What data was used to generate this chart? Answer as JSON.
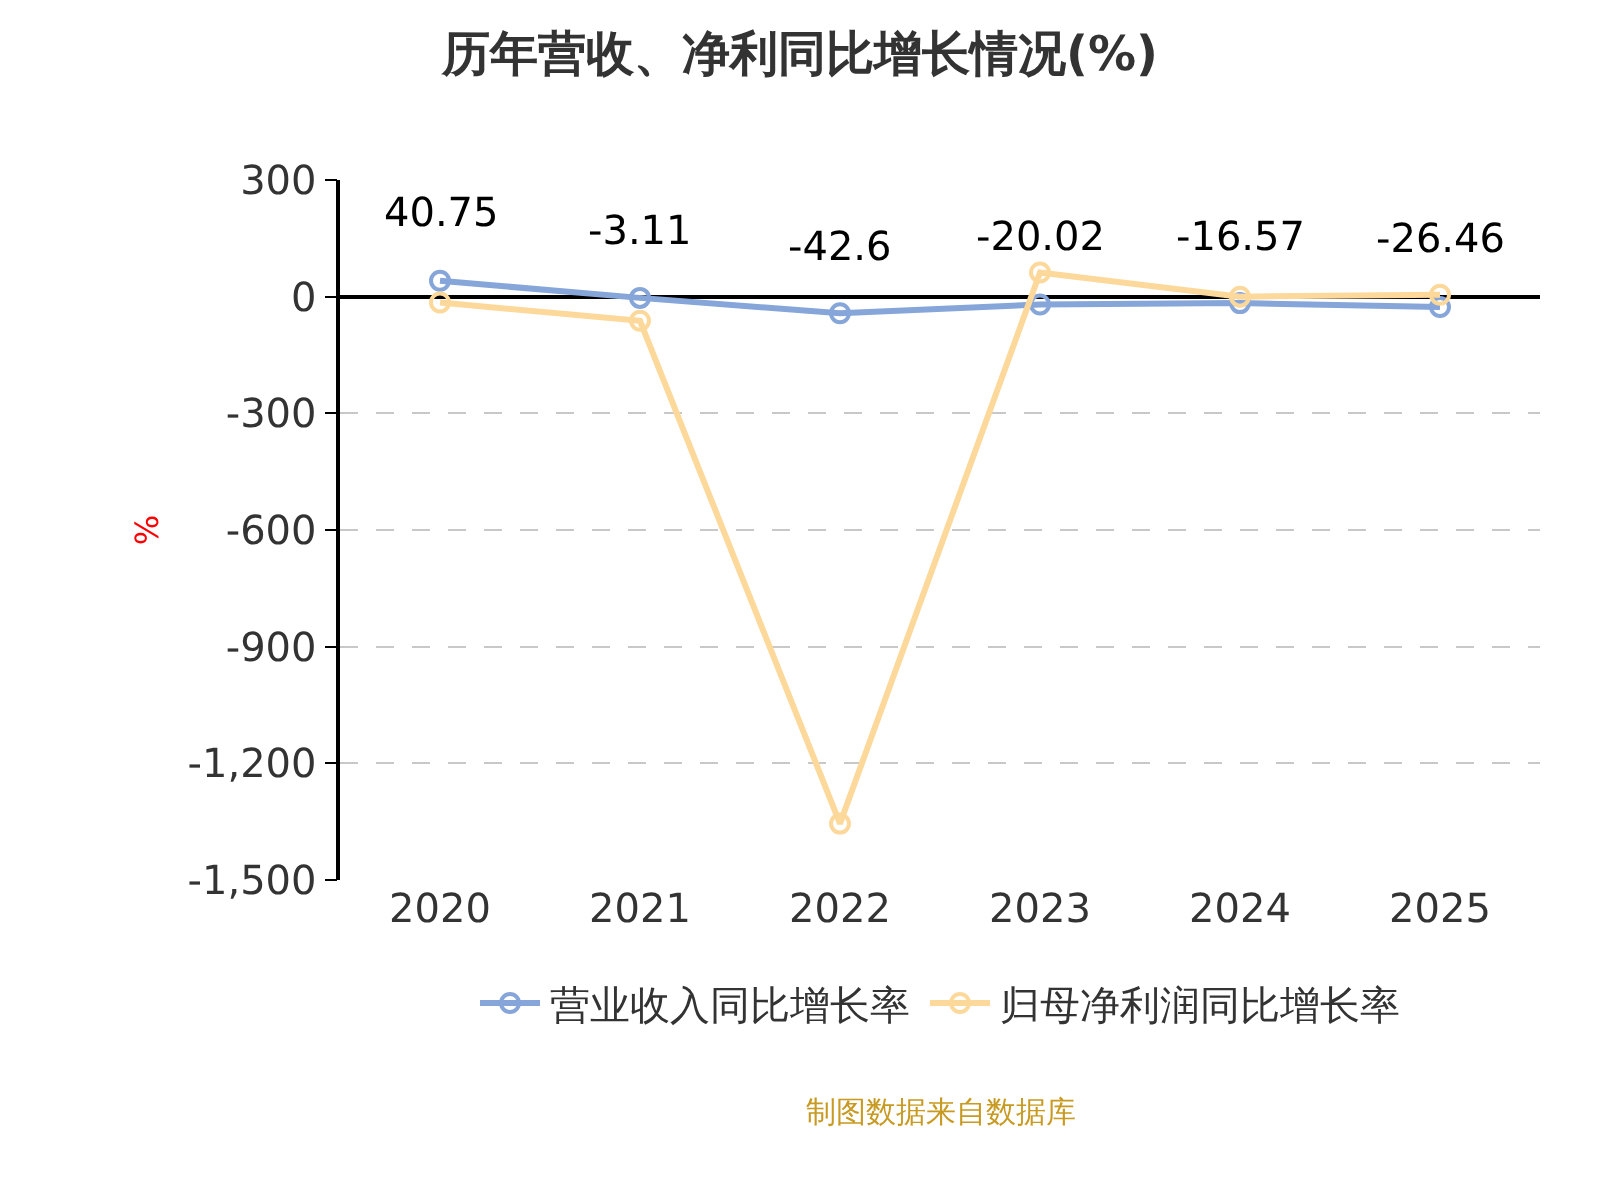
{
  "chart_data": {
    "type": "line",
    "title": "历年营收、净利同比增长情况(%)",
    "ylabel": "%",
    "categories": [
      "2020",
      "2021",
      "2022",
      "2023",
      "2024",
      "2025"
    ],
    "series": [
      {
        "name": "营业收入同比增长率",
        "color": "#86a5d9",
        "values": [
          40.75,
          -3.11,
          -42.6,
          -20.02,
          -16.57,
          -26.46
        ],
        "value_labels": [
          "40.75",
          "-3.11",
          "-42.6",
          "-20.02",
          "-16.57",
          "-26.46"
        ]
      },
      {
        "name": "归母净利润同比增长率",
        "color": "#fdd89b",
        "values": [
          -15,
          -62,
          -1355,
          62,
          0,
          5
        ]
      }
    ],
    "ylim": [
      -1500,
      300
    ],
    "yticks": [
      {
        "value": 300,
        "label": "300"
      },
      {
        "value": 0,
        "label": "0"
      },
      {
        "value": -300,
        "label": "-300"
      },
      {
        "value": -600,
        "label": "-600"
      },
      {
        "value": -900,
        "label": "-900"
      },
      {
        "value": -1200,
        "label": "-1,200"
      },
      {
        "value": -1500,
        "label": "-1,500"
      }
    ],
    "grid": "y",
    "legend": "bottom",
    "marker": "circle",
    "line_style": "solid",
    "annotations": [
      "制图数据来自数据库"
    ]
  }
}
